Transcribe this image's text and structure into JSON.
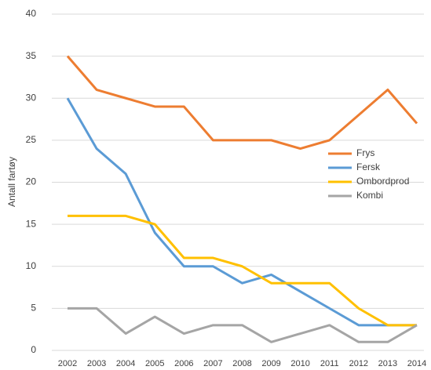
{
  "chart_data": {
    "type": "line",
    "y_label": "Antall fartøy",
    "categories": [
      "2002",
      "2003",
      "2004",
      "2005",
      "2006",
      "2007",
      "2008",
      "2009",
      "2010",
      "2011",
      "2012",
      "2013",
      "2014"
    ],
    "series": [
      {
        "name": "Frys",
        "color": "#ed7d31",
        "values": [
          35,
          31,
          30,
          29,
          29,
          25,
          25,
          25,
          24,
          25,
          28,
          31,
          27
        ]
      },
      {
        "name": "Fersk",
        "color": "#5b9bd5",
        "values": [
          30,
          24,
          21,
          14,
          10,
          10,
          8,
          9,
          7,
          5,
          3,
          3,
          3
        ]
      },
      {
        "name": "Ombordprod",
        "color": "#ffc000",
        "values": [
          16,
          16,
          16,
          15,
          11,
          11,
          10,
          8,
          8,
          8,
          5,
          3,
          3
        ]
      },
      {
        "name": "Kombi",
        "color": "#a5a5a5",
        "values": [
          5,
          5,
          2,
          4,
          2,
          3,
          3,
          1,
          2,
          3,
          1,
          1,
          3
        ]
      }
    ],
    "ylim": [
      0,
      40
    ],
    "yticks": [
      0,
      5,
      10,
      15,
      20,
      25,
      30,
      35,
      40
    ],
    "grid": true,
    "legend": "right"
  }
}
